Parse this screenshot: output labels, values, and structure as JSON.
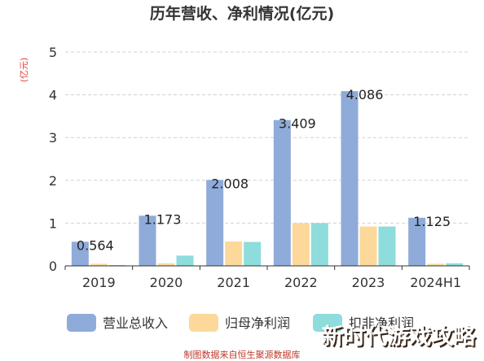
{
  "chart_data": {
    "type": "bar",
    "title": "历年营收、净利情况(亿元)",
    "ylabel": "(亿元)",
    "ylim": [
      0,
      5
    ],
    "yticks": [
      "0",
      "1",
      "2",
      "3",
      "4",
      "5"
    ],
    "categories": [
      "2019",
      "2020",
      "2021",
      "2022",
      "2023",
      "2024H1"
    ],
    "series": [
      {
        "name": "营业总收入",
        "color": "#8fabd9",
        "values": [
          0.564,
          1.173,
          2.008,
          3.409,
          4.086,
          1.125
        ]
      },
      {
        "name": "归母净利润",
        "color": "#fcd99a",
        "values": [
          0.05,
          0.06,
          0.57,
          1.0,
          0.92,
          0.05
        ]
      },
      {
        "name": "扣非净利润",
        "color": "#8edcdc",
        "values": [
          0.02,
          0.24,
          0.56,
          1.0,
          0.92,
          0.06
        ]
      }
    ],
    "data_labels": [
      "0.564",
      "1.173",
      "2.008",
      "3.409",
      "4.086",
      "1.125"
    ],
    "grid": true,
    "grid_color": "#d0d0d0",
    "legend_position": "bottom"
  },
  "source_text": "制图数据来自恒生聚源数据库",
  "watermark_text": "新时代游戏攻略"
}
